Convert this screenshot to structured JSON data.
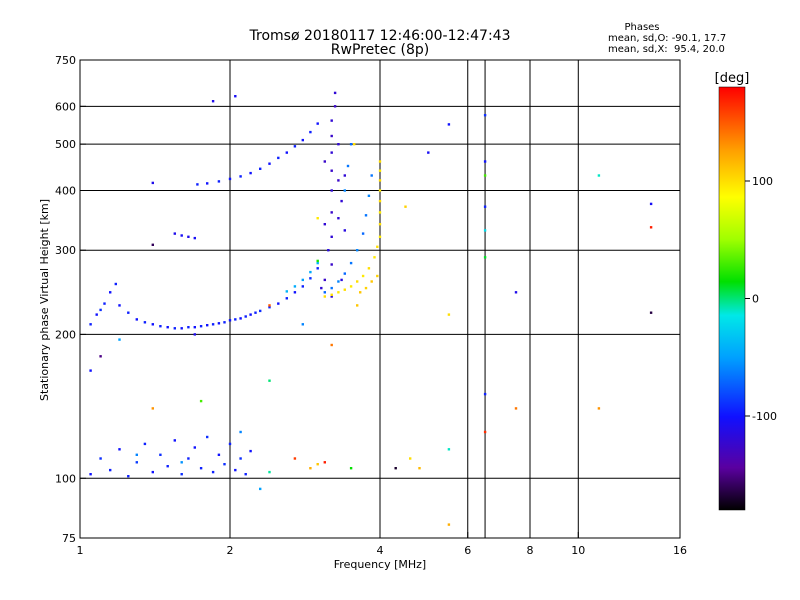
{
  "chart_data": {
    "type": "scatter",
    "title": "Tromsø 20180117 12:46:00-12:47:43",
    "subtitle": "RwPretec (8p)",
    "xlabel": "Frequency [MHz]",
    "ylabel": "Stationary phase Virtual Height [km]",
    "x_scale": "log2",
    "y_scale": "log",
    "xlim": [
      1,
      16
    ],
    "ylim": [
      75,
      750
    ],
    "xticks": [
      "1",
      "2",
      "4",
      "6",
      "8",
      "10",
      "16"
    ],
    "xtick_values": [
      1,
      2,
      4,
      6,
      8,
      10,
      16
    ],
    "yticks": [
      "75",
      "100",
      "200",
      "300",
      "400",
      "500",
      "600",
      "750"
    ],
    "ytick_values": [
      75,
      100,
      200,
      300,
      400,
      500,
      600,
      750
    ],
    "x_gridlines": [
      2,
      4,
      6,
      6.5,
      8,
      10
    ],
    "y_gridlines": [
      100,
      200,
      300,
      400,
      500,
      600
    ],
    "phase_info": {
      "header": "Phases",
      "line1": "mean, sd,O: -90.1, 17.7",
      "line2": "mean, sd,X:  95.4, 20.0"
    },
    "colorbar": {
      "label": "[deg]",
      "range": [
        -180,
        180
      ],
      "ticks": [
        "100",
        "0",
        "-100"
      ],
      "tick_values": [
        100,
        0,
        -100
      ]
    },
    "series": [
      {
        "points": [
          [
            1.05,
            210,
            -95
          ],
          [
            1.08,
            220,
            -100
          ],
          [
            1.12,
            232,
            -95
          ],
          [
            1.15,
            245,
            -100
          ],
          [
            1.18,
            255,
            -95
          ],
          [
            1.1,
            225,
            -90
          ],
          [
            1.2,
            230,
            -100
          ],
          [
            1.25,
            222,
            -95
          ],
          [
            1.3,
            215,
            -100
          ],
          [
            1.35,
            212,
            -95
          ],
          [
            1.4,
            210,
            -100
          ],
          [
            1.45,
            208,
            -95
          ],
          [
            1.5,
            207,
            -100
          ],
          [
            1.55,
            206,
            -95
          ],
          [
            1.6,
            206,
            -100
          ],
          [
            1.65,
            207,
            -95
          ],
          [
            1.7,
            207,
            -100
          ],
          [
            1.75,
            208,
            -95
          ],
          [
            1.8,
            209,
            -100
          ],
          [
            1.85,
            210,
            -95
          ],
          [
            1.9,
            211,
            -100
          ],
          [
            1.95,
            212,
            -95
          ],
          [
            2.0,
            214,
            -100
          ],
          [
            2.05,
            215,
            -95
          ],
          [
            2.1,
            216,
            -100
          ],
          [
            2.15,
            218,
            -95
          ],
          [
            2.2,
            220,
            -100
          ],
          [
            2.25,
            222,
            -95
          ],
          [
            2.3,
            224,
            -90
          ],
          [
            2.4,
            228,
            -95
          ],
          [
            2.5,
            232,
            -100
          ],
          [
            2.6,
            238,
            -95
          ],
          [
            2.7,
            245,
            -100
          ],
          [
            2.8,
            252,
            -95
          ],
          [
            2.9,
            262,
            -90
          ],
          [
            3.0,
            275,
            -95
          ],
          [
            1.55,
            325,
            -110
          ],
          [
            1.6,
            322,
            -105
          ],
          [
            1.65,
            320,
            -110
          ],
          [
            1.7,
            318,
            -105
          ],
          [
            1.72,
            412,
            -95
          ],
          [
            1.8,
            414,
            -100
          ],
          [
            1.9,
            418,
            -95
          ],
          [
            2.0,
            423,
            -100
          ],
          [
            2.1,
            428,
            -95
          ],
          [
            2.2,
            435,
            -100
          ],
          [
            2.3,
            444,
            -95
          ],
          [
            2.4,
            455,
            -100
          ],
          [
            2.5,
            468,
            -95
          ],
          [
            2.6,
            480,
            -100
          ],
          [
            2.7,
            495,
            -95
          ],
          [
            2.8,
            510,
            -100
          ],
          [
            2.9,
            530,
            -95
          ],
          [
            3.0,
            552,
            -100
          ],
          [
            1.85,
            615,
            -110
          ],
          [
            2.05,
            630,
            -105
          ],
          [
            1.4,
            415,
            -110
          ],
          [
            3.2,
            240,
            -120
          ],
          [
            3.2,
            280,
            -125
          ],
          [
            3.2,
            320,
            -120
          ],
          [
            3.2,
            360,
            -125
          ],
          [
            3.2,
            400,
            -120
          ],
          [
            3.2,
            440,
            -125
          ],
          [
            3.2,
            480,
            -120
          ],
          [
            3.2,
            520,
            -125
          ],
          [
            3.2,
            560,
            -120
          ],
          [
            3.25,
            600,
            -125
          ],
          [
            3.25,
            640,
            -120
          ],
          [
            3.15,
            300,
            -115
          ],
          [
            3.3,
            350,
            -120
          ],
          [
            3.3,
            420,
            -125
          ],
          [
            3.3,
            500,
            -120
          ],
          [
            3.35,
            260,
            -115
          ],
          [
            3.35,
            380,
            -120
          ],
          [
            3.4,
            330,
            -115
          ],
          [
            3.4,
            430,
            -120
          ],
          [
            3.1,
            260,
            -125
          ],
          [
            3.1,
            340,
            -120
          ],
          [
            3.1,
            460,
            -125
          ],
          [
            3.05,
            250,
            -120
          ],
          [
            1.05,
            102,
            -100
          ],
          [
            1.1,
            110,
            -90
          ],
          [
            1.15,
            104,
            -95
          ],
          [
            1.2,
            115,
            -100
          ],
          [
            1.25,
            101,
            -95
          ],
          [
            1.3,
            108,
            -85
          ],
          [
            1.35,
            118,
            -95
          ],
          [
            1.4,
            103,
            -100
          ],
          [
            1.45,
            112,
            -90
          ],
          [
            1.5,
            106,
            -95
          ],
          [
            1.55,
            120,
            -100
          ],
          [
            1.6,
            102,
            -90
          ],
          [
            1.65,
            110,
            -95
          ],
          [
            1.7,
            116,
            -100
          ],
          [
            1.75,
            105,
            -95
          ],
          [
            1.8,
            122,
            -90
          ],
          [
            1.85,
            103,
            -95
          ],
          [
            1.9,
            112,
            -100
          ],
          [
            1.95,
            107,
            -90
          ],
          [
            2.0,
            118,
            -95
          ],
          [
            2.05,
            104,
            -100
          ],
          [
            2.1,
            110,
            -90
          ],
          [
            2.15,
            102,
            -95
          ],
          [
            2.2,
            114,
            -100
          ],
          [
            1.7,
            200,
            -110
          ],
          [
            1.05,
            168,
            -100
          ],
          [
            6.5,
            575,
            -90
          ],
          [
            6.5,
            460,
            -100
          ],
          [
            6.5,
            370,
            -95
          ],
          [
            5.5,
            550,
            -100
          ],
          [
            5.0,
            480,
            -105
          ],
          [
            7.5,
            245,
            -110
          ],
          [
            14.0,
            375,
            -105
          ],
          [
            6.5,
            150,
            -95
          ]
        ]
      },
      {
        "points": [
          [
            3.1,
            245,
            -70
          ],
          [
            3.2,
            250,
            -65
          ],
          [
            3.3,
            258,
            -60
          ],
          [
            3.4,
            268,
            -70
          ],
          [
            3.5,
            282,
            -65
          ],
          [
            3.6,
            300,
            -60
          ],
          [
            3.7,
            325,
            -70
          ],
          [
            3.75,
            355,
            -65
          ],
          [
            3.8,
            390,
            -60
          ],
          [
            3.85,
            430,
            -65
          ],
          [
            2.6,
            246,
            -40
          ],
          [
            2.7,
            252,
            -45
          ],
          [
            2.8,
            260,
            -50
          ],
          [
            2.9,
            270,
            -45
          ],
          [
            3.0,
            282,
            -40
          ],
          [
            3.4,
            400,
            -60
          ],
          [
            3.45,
            450,
            -65
          ],
          [
            3.5,
            500,
            -70
          ],
          [
            1.3,
            112,
            -60
          ],
          [
            1.6,
            108,
            -55
          ],
          [
            2.1,
            125,
            -60
          ],
          [
            2.3,
            95,
            -50
          ],
          [
            1.2,
            195,
            -50
          ],
          [
            2.8,
            210,
            -60
          ],
          [
            11.0,
            430,
            -10
          ],
          [
            6.5,
            330,
            -20
          ],
          [
            5.5,
            115,
            -10
          ]
        ]
      },
      {
        "points": [
          [
            3.1,
            240,
            100
          ],
          [
            3.2,
            242,
            100
          ],
          [
            3.3,
            245,
            95
          ],
          [
            3.4,
            248,
            100
          ],
          [
            3.5,
            252,
            95
          ],
          [
            3.6,
            258,
            100
          ],
          [
            3.7,
            265,
            95
          ],
          [
            3.8,
            275,
            100
          ],
          [
            3.9,
            290,
            95
          ],
          [
            3.95,
            305,
            100
          ],
          [
            4.0,
            320,
            95
          ],
          [
            4.0,
            340,
            100
          ],
          [
            4.0,
            360,
            95
          ],
          [
            4.0,
            380,
            100
          ],
          [
            4.0,
            400,
            95
          ],
          [
            4.0,
            420,
            100
          ],
          [
            4.0,
            440,
            95
          ],
          [
            4.0,
            460,
            100
          ],
          [
            3.65,
            245,
            110
          ],
          [
            3.75,
            250,
            105
          ],
          [
            3.85,
            258,
            110
          ],
          [
            3.95,
            265,
            105
          ],
          [
            3.55,
            500,
            100
          ],
          [
            4.5,
            370,
            105
          ],
          [
            4.8,
            105,
            115
          ],
          [
            4.6,
            110,
            100
          ],
          [
            3.6,
            230,
            110
          ],
          [
            2.9,
            105,
            120
          ],
          [
            3.0,
            107,
            110
          ],
          [
            5.5,
            80,
            120
          ],
          [
            5.5,
            220,
            100
          ],
          [
            3.0,
            350,
            95
          ]
        ]
      },
      {
        "points": [
          [
            2.4,
            160,
            0
          ],
          [
            3.0,
            285,
            20
          ],
          [
            6.5,
            290,
            10
          ],
          [
            6.5,
            430,
            30
          ],
          [
            2.4,
            103,
            -5
          ],
          [
            3.5,
            105,
            15
          ],
          [
            1.75,
            145,
            30
          ]
        ]
      },
      {
        "points": [
          [
            1.4,
            308,
            -160
          ],
          [
            14.0,
            222,
            -165
          ],
          [
            2.7,
            110,
            160
          ],
          [
            3.1,
            108,
            170
          ],
          [
            6.5,
            125,
            165
          ],
          [
            14.0,
            335,
            170
          ],
          [
            4.3,
            105,
            -170
          ],
          [
            1.1,
            180,
            -150
          ],
          [
            2.4,
            230,
            150
          ],
          [
            3.2,
            190,
            140
          ],
          [
            7.5,
            140,
            140
          ],
          [
            11.0,
            140,
            130
          ],
          [
            1.4,
            140,
            130
          ]
        ]
      }
    ]
  }
}
